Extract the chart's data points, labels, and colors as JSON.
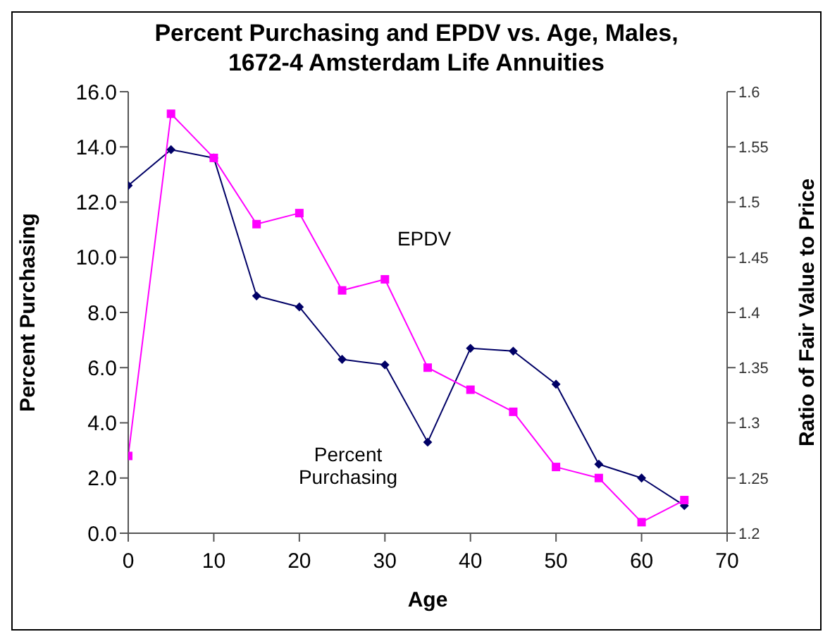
{
  "chart_data": {
    "type": "line",
    "title": "Percent Purchasing and EPDV vs. Age, Males,\n1672-4 Amsterdam Life Annuities",
    "xlabel": "Age",
    "ylabel": "Percent Purchasing",
    "y2label": "Ratio of Fair Value to Price",
    "x": [
      0,
      5,
      10,
      15,
      20,
      25,
      30,
      35,
      40,
      45,
      50,
      55,
      60,
      65
    ],
    "series": [
      {
        "name": "Percent Purchasing",
        "color": "#000066",
        "marker": "diamond",
        "values": [
          12.6,
          13.9,
          13.6,
          8.6,
          8.2,
          6.3,
          6.1,
          3.3,
          6.7,
          6.6,
          5.4,
          2.5,
          2.0,
          1.0
        ]
      },
      {
        "name": "EPDV",
        "color": "#ff00ff",
        "marker": "square",
        "axis": "y2",
        "values": [
          1.27,
          1.58,
          1.54,
          1.48,
          1.49,
          1.42,
          1.43,
          1.35,
          1.33,
          1.31,
          1.26,
          1.25,
          1.21,
          1.23
        ]
      }
    ],
    "xlim": [
      0,
      70
    ],
    "xticks": [
      0,
      10,
      20,
      30,
      40,
      50,
      60,
      70
    ],
    "ylim": [
      0,
      16
    ],
    "yticks": [
      {
        "value": 0,
        "label": "0.0"
      },
      {
        "value": 2,
        "label": "2.0"
      },
      {
        "value": 4,
        "label": "4.0"
      },
      {
        "value": 6,
        "label": "6.0"
      },
      {
        "value": 8,
        "label": "8.0"
      },
      {
        "value": 10,
        "label": "10.0"
      },
      {
        "value": 12,
        "label": "12.0"
      },
      {
        "value": 14,
        "label": "14.0"
      },
      {
        "value": 16,
        "label": "16.0"
      }
    ],
    "y2lim": [
      1.2,
      1.6
    ],
    "y2ticks": [
      1.2,
      1.25,
      1.3,
      1.35,
      1.4,
      1.45,
      1.5,
      1.55,
      1.6
    ],
    "grid": false,
    "line_style": "solid"
  }
}
